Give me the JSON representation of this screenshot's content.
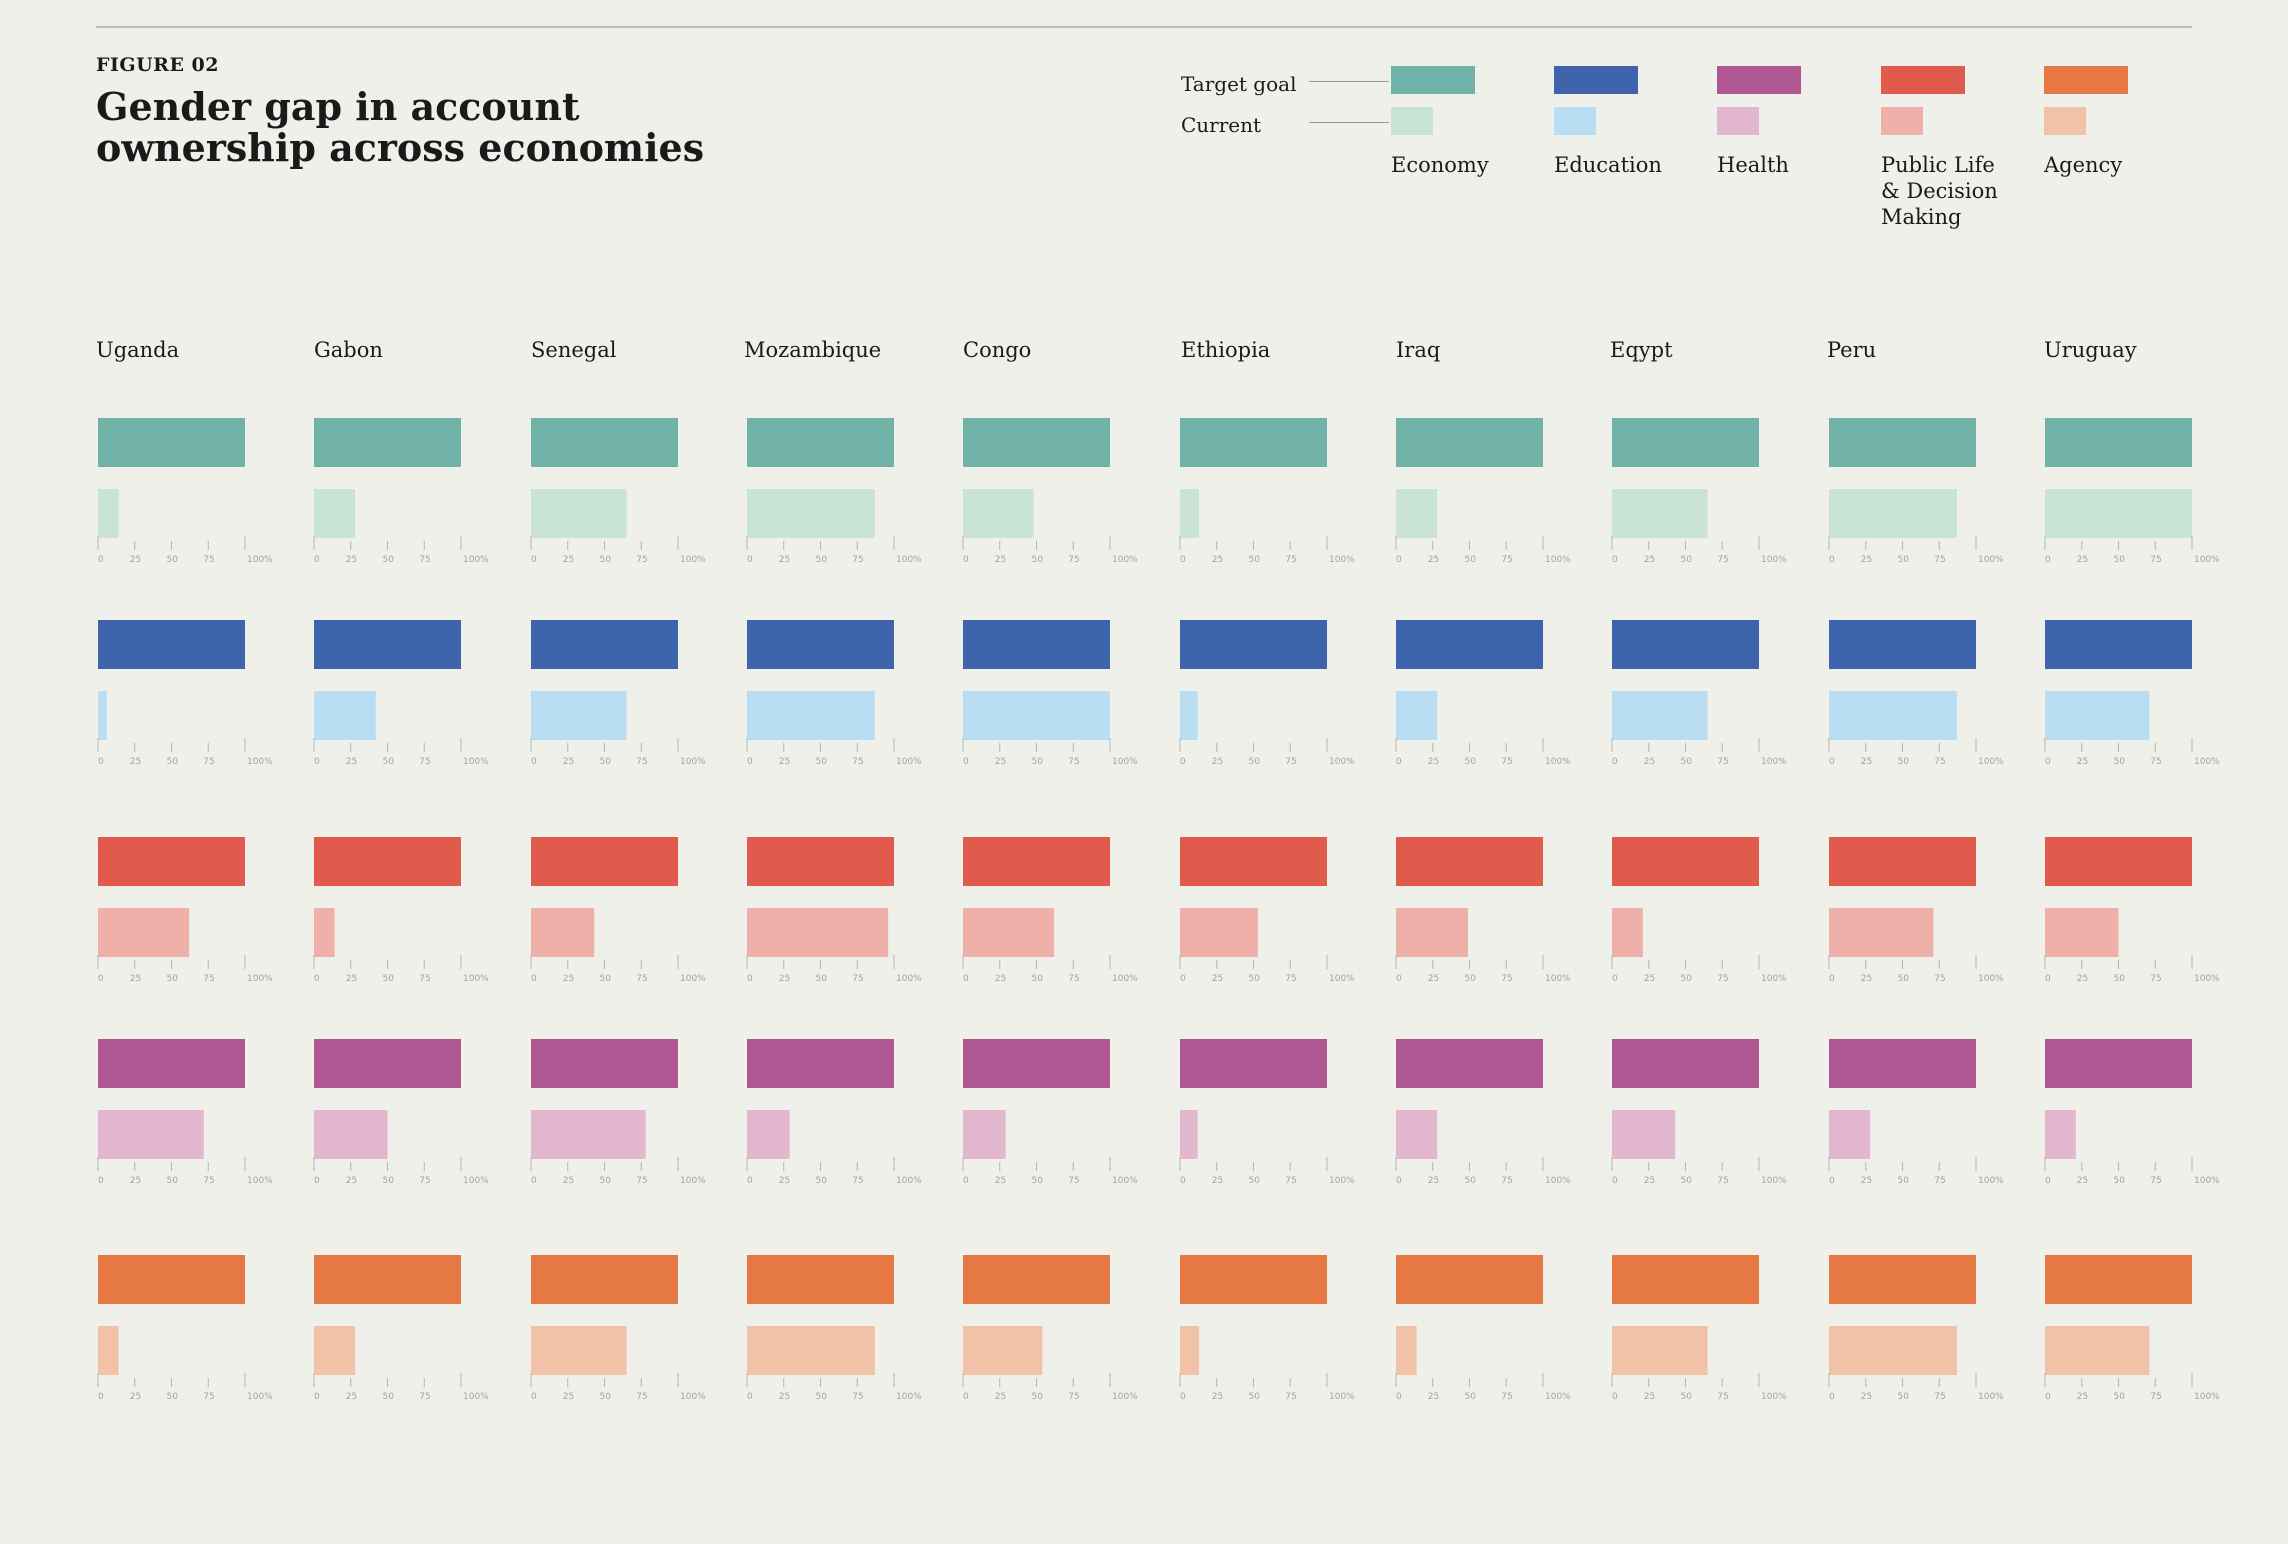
{
  "figure_label": "FIGURE 02",
  "title_lines": [
    "Gender gap in account",
    "ownership across economies"
  ],
  "legend": {
    "target_label": "Target goal",
    "current_label": "Current",
    "categories": [
      {
        "name": "Economy",
        "lines": [
          "Economy"
        ],
        "target_color": "#72b3a9",
        "current_color": "#c9e3d6"
      },
      {
        "name": "Education",
        "lines": [
          "Education"
        ],
        "target_color": "#3d63ad",
        "current_color": "#b9ddf3"
      },
      {
        "name": "Health",
        "lines": [
          "Health"
        ],
        "target_color": "#b05793",
        "current_color": "#e4b7d0"
      },
      {
        "name": "Public Life & Decision Making",
        "lines": [
          "Public Life",
          "& Decision",
          "Making"
        ],
        "target_color": "#e05b4c",
        "current_color": "#eeb0a9"
      },
      {
        "name": "Agency",
        "lines": [
          "Agency"
        ],
        "target_color": "#e57843",
        "current_color": "#f2c2a8"
      }
    ]
  },
  "axis_ticks": [
    "0",
    "25",
    "50",
    "75",
    "100%"
  ],
  "chart_data": {
    "type": "bar",
    "orientation": "horizontal",
    "xlim": [
      0,
      100
    ],
    "countries": [
      "Uganda",
      "Gabon",
      "Senegal",
      "Mozambique",
      "Congo",
      "Ethiopia",
      "Iraq",
      "Eqypt",
      "Peru",
      "Uruguay"
    ],
    "row_order": [
      {
        "category": "Economy",
        "target_color": "#72b3a9",
        "current_color": "#c9e3d6"
      },
      {
        "category": "Education",
        "target_color": "#3d63ad",
        "current_color": "#b9ddf3"
      },
      {
        "category": "Public Life & Decision Making",
        "target_color": "#e05b4c",
        "current_color": "#eeb0a9"
      },
      {
        "category": "Health",
        "target_color": "#b05793",
        "current_color": "#e4b7d0"
      },
      {
        "category": "Agency",
        "target_color": "#e57843",
        "current_color": "#f2c2a8"
      }
    ],
    "target": 100,
    "current": {
      "Economy": [
        14,
        28,
        65,
        87,
        48,
        13,
        28,
        65,
        87,
        100
      ],
      "Education": [
        6,
        42,
        65,
        87,
        100,
        12,
        28,
        65,
        87,
        71
      ],
      "Public Life & Decision Making": [
        62,
        14,
        43,
        96,
        62,
        53,
        49,
        21,
        71,
        50
      ],
      "Health": [
        72,
        50,
        78,
        29,
        29,
        12,
        28,
        43,
        28,
        21
      ],
      "Agency": [
        14,
        28,
        65,
        87,
        54,
        13,
        14,
        65,
        87,
        71
      ]
    }
  }
}
